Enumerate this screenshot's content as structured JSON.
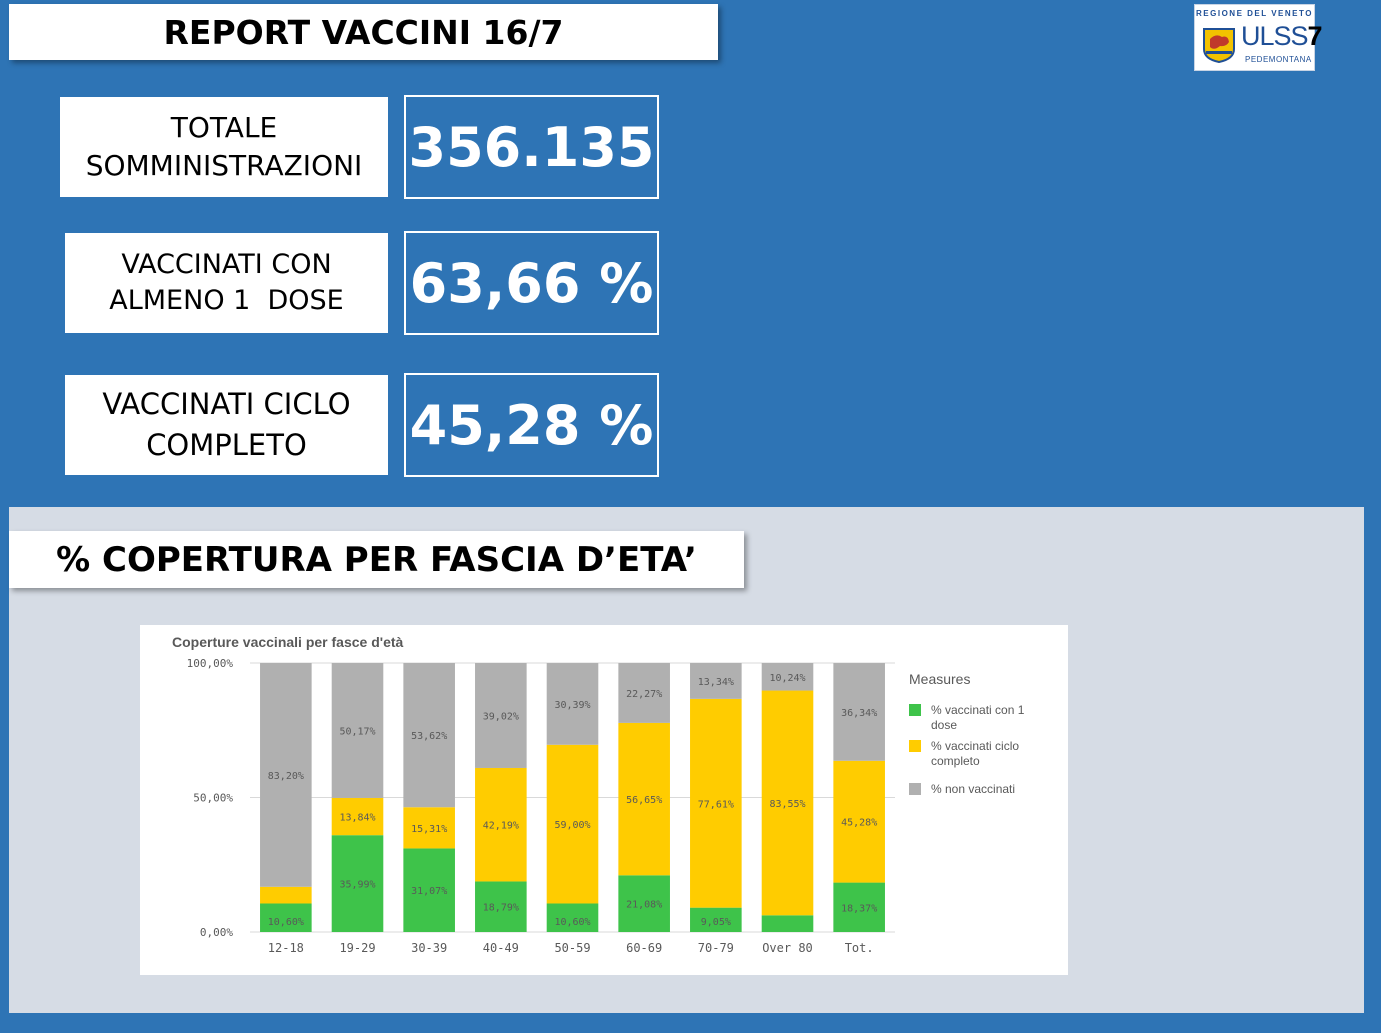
{
  "header": {
    "title": "REPORT VACCINI 16/7"
  },
  "logo": {
    "region": "REGIONE DEL VENETO",
    "brand_prefix": "ULSS",
    "brand_number": "7",
    "subtitle": "PEDEMONTANA"
  },
  "kpis": [
    {
      "label_lines": [
        "TOTALE",
        "SOMMINISTRAZIONI"
      ],
      "value": "356.135"
    },
    {
      "label_lines": [
        "VACCINATI CON",
        "ALMENO 1  DOSE"
      ],
      "value": "63,66 %"
    },
    {
      "label_lines": [
        "VACCINATI CICLO",
        "COMPLETO"
      ],
      "value": "45,28 %"
    }
  ],
  "section": {
    "title": "% COPERTURA PER FASCIA D’ETA’"
  },
  "colors": {
    "background": "#2e74b5",
    "panel": "#d6dce5",
    "dose1": "#3ec34a",
    "complete": "#ffcc00",
    "none": "#b0b0b0"
  },
  "chart_data": {
    "type": "bar",
    "stacked": true,
    "title": "Coperture vaccinali per fasce d'età",
    "categories": [
      "12-18",
      "19-29",
      "30-39",
      "40-49",
      "50-59",
      "60-69",
      "70-79",
      "Over 80",
      "Tot."
    ],
    "ytick_labels": [
      "100,00%",
      "50,00%",
      "0,00%"
    ],
    "ylim": [
      0,
      100
    ],
    "legend_title": "Measures",
    "legend_position": "right",
    "grid": true,
    "series": [
      {
        "name": "% vaccinati con 1 dose",
        "color": "#3ec34a",
        "values": [
          10.6,
          35.99,
          31.07,
          18.79,
          10.6,
          21.08,
          9.05,
          6.21,
          18.37
        ],
        "labels": [
          "10,60%",
          "35,99%",
          "31,07%",
          "18,79%",
          "10,60%",
          "21,08%",
          "9,05%",
          "",
          "18,37%"
        ]
      },
      {
        "name": "% vaccinati ciclo completo",
        "color": "#ffcc00",
        "values": [
          6.2,
          13.84,
          15.31,
          42.19,
          59.0,
          56.65,
          77.61,
          83.55,
          45.28
        ],
        "labels": [
          "",
          "13,84%",
          "15,31%",
          "42,19%",
          "59,00%",
          "56,65%",
          "77,61%",
          "83,55%",
          "45,28%"
        ]
      },
      {
        "name": "% non vaccinati",
        "color": "#b0b0b0",
        "values": [
          83.2,
          50.17,
          53.62,
          39.02,
          30.39,
          22.27,
          13.34,
          10.24,
          36.34
        ],
        "labels": [
          "83,20%",
          "50,17%",
          "53,62%",
          "39,02%",
          "30,39%",
          "22,27%",
          "13,34%",
          "10,24%",
          "36,34%"
        ]
      }
    ]
  }
}
